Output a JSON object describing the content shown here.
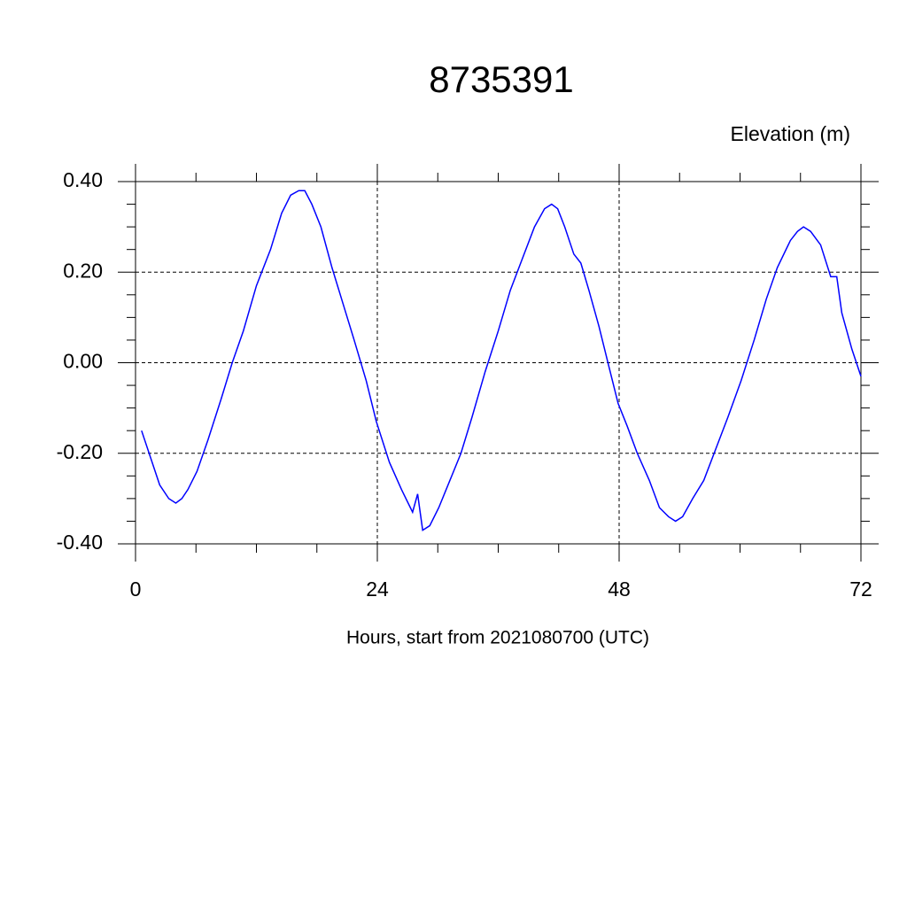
{
  "chart_data": {
    "type": "line",
    "title": "8735391",
    "ylabel": "Elevation (m)",
    "xlabel": "Hours, start from 2021080700 (UTC)",
    "x": [
      0.6,
      1.5,
      2.4,
      3.3,
      4.0,
      4.6,
      5.2,
      6.1,
      7.2,
      8.5,
      9.6,
      10.7,
      12.0,
      13.4,
      14.5,
      15.4,
      16.2,
      16.8,
      17.5,
      18.4,
      19.5,
      20.6,
      21.7,
      22.9,
      23.9,
      25.2,
      26.4,
      27.5,
      28.0,
      28.5,
      29.2,
      30.1,
      31.2,
      32.3,
      33.4,
      34.7,
      36.0,
      37.2,
      38.4,
      39.6,
      40.6,
      41.3,
      41.9,
      42.6,
      43.5,
      44.2,
      45.0,
      46.0,
      47.0,
      47.9,
      48.8,
      49.8,
      51.0,
      52.0,
      52.9,
      53.6,
      54.3,
      55.3,
      56.4,
      57.6,
      58.8,
      60.1,
      61.4,
      62.6,
      63.7,
      65.0,
      65.7,
      66.3,
      67.0,
      68.0,
      69.0,
      69.6,
      70.1,
      71.1,
      72.0
    ],
    "series": [
      {
        "name": "Elevation",
        "color": "#0000ff",
        "values": [
          -0.15,
          -0.21,
          -0.27,
          -0.3,
          -0.31,
          -0.3,
          -0.28,
          -0.24,
          -0.17,
          -0.08,
          0.0,
          0.07,
          0.17,
          0.25,
          0.33,
          0.37,
          0.38,
          0.38,
          0.35,
          0.3,
          0.21,
          0.13,
          0.05,
          -0.04,
          -0.13,
          -0.22,
          -0.28,
          -0.33,
          -0.29,
          -0.37,
          -0.36,
          -0.32,
          -0.26,
          -0.2,
          -0.12,
          -0.02,
          0.07,
          0.16,
          0.23,
          0.3,
          0.34,
          0.35,
          0.34,
          0.3,
          0.24,
          0.22,
          0.16,
          0.08,
          -0.01,
          -0.09,
          -0.14,
          -0.2,
          -0.26,
          -0.32,
          -0.34,
          -0.35,
          -0.34,
          -0.3,
          -0.26,
          -0.19,
          -0.12,
          -0.04,
          0.05,
          0.14,
          0.21,
          0.27,
          0.29,
          0.3,
          0.29,
          0.26,
          0.19,
          0.19,
          0.11,
          0.03,
          -0.03
        ]
      }
    ],
    "xlim": [
      0,
      72
    ],
    "xticks": [
      0,
      24,
      48,
      72
    ],
    "ylim": [
      -0.4,
      0.4
    ],
    "yticks": [
      {
        "value": -0.4,
        "label": "-0.40"
      },
      {
        "value": -0.2,
        "label": "-0.20"
      },
      {
        "value": 0,
        "label": "0.00"
      },
      {
        "value": 0.2,
        "label": "0.20"
      },
      {
        "value": 0.4,
        "label": "0.40"
      }
    ],
    "grid": true
  }
}
